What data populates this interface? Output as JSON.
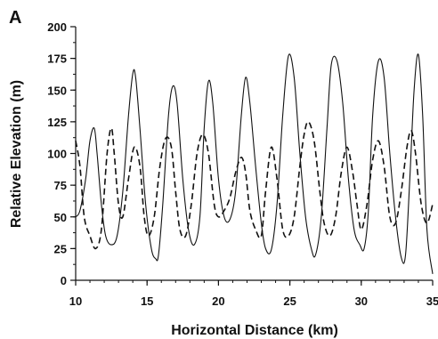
{
  "panel_label": "A",
  "chart_data": {
    "type": "line",
    "title": "",
    "xlabel": "Horizontal Distance (km)",
    "ylabel": "Relative Elevation (m)",
    "xlim": [
      10,
      35
    ],
    "ylim": [
      0,
      200
    ],
    "xticks": [
      10,
      15,
      20,
      25,
      30,
      35
    ],
    "yticks": [
      0,
      25,
      50,
      75,
      100,
      125,
      150,
      175,
      200
    ],
    "grid": false,
    "legend": "none",
    "series": [
      {
        "style": "solid",
        "color": "#111111",
        "x": [
          10.0,
          10.3,
          10.7,
          11.0,
          11.3,
          11.5,
          11.8,
          12.1,
          12.5,
          12.9,
          13.3,
          13.7,
          14.0,
          14.2,
          14.5,
          14.9,
          15.3,
          15.6,
          15.8,
          16.1,
          16.5,
          16.8,
          17.1,
          17.5,
          17.9,
          18.3,
          18.7,
          19.0,
          19.3,
          19.6,
          20.0,
          20.4,
          20.8,
          21.2,
          21.6,
          21.9,
          22.2,
          22.6,
          23.0,
          23.3,
          23.7,
          24.1,
          24.5,
          24.9,
          25.3,
          25.7,
          26.1,
          26.5,
          26.8,
          27.2,
          27.6,
          27.9,
          28.3,
          28.7,
          29.1,
          29.5,
          29.9,
          30.2,
          30.5,
          30.8,
          31.2,
          31.6,
          32.0,
          32.4,
          32.8,
          33.1,
          33.4,
          33.7,
          34.0,
          34.3,
          34.6,
          35.0
        ],
        "y": [
          50,
          55,
          80,
          110,
          120,
          100,
          60,
          35,
          28,
          35,
          70,
          130,
          163,
          160,
          120,
          60,
          25,
          17,
          20,
          60,
          130,
          153,
          140,
          80,
          40,
          28,
          50,
          120,
          157,
          140,
          80,
          50,
          48,
          70,
          130,
          160,
          140,
          90,
          45,
          25,
          24,
          60,
          130,
          177,
          160,
          100,
          50,
          25,
          20,
          50,
          120,
          170,
          173,
          140,
          80,
          40,
          28,
          25,
          55,
          130,
          173,
          160,
          100,
          50,
          18,
          20,
          80,
          150,
          178,
          130,
          40,
          5
        ]
      },
      {
        "style": "dashed",
        "color": "#111111",
        "x": [
          10.0,
          10.3,
          10.6,
          11.0,
          11.4,
          11.8,
          12.2,
          12.5,
          12.7,
          13.0,
          13.3,
          13.7,
          14.1,
          14.5,
          14.8,
          15.1,
          15.5,
          15.9,
          16.3,
          16.7,
          17.0,
          17.3,
          17.7,
          18.1,
          18.5,
          18.9,
          19.3,
          19.7,
          20.0,
          20.4,
          20.8,
          21.2,
          21.6,
          21.9,
          22.2,
          22.6,
          23.0,
          23.3,
          23.7,
          24.1,
          24.5,
          24.9,
          25.3,
          25.7,
          26.0,
          26.3,
          26.7,
          27.1,
          27.4,
          27.8,
          28.2,
          28.6,
          29.0,
          29.4,
          29.7,
          30.0,
          30.4,
          30.8,
          31.2,
          31.6,
          32.0,
          32.4,
          32.8,
          33.2,
          33.5,
          33.8,
          34.2,
          34.6,
          35.0
        ],
        "y": [
          110,
          90,
          50,
          35,
          25,
          40,
          100,
          120,
          100,
          60,
          50,
          80,
          105,
          90,
          50,
          35,
          50,
          90,
          112,
          105,
          70,
          40,
          35,
          60,
          100,
          115,
          100,
          60,
          50,
          55,
          65,
          85,
          97,
          85,
          55,
          40,
          35,
          70,
          105,
          80,
          40,
          35,
          50,
          90,
          115,
          125,
          110,
          70,
          45,
          35,
          50,
          85,
          105,
          85,
          60,
          40,
          60,
          95,
          110,
          90,
          50,
          45,
          70,
          105,
          118,
          100,
          60,
          45,
          60
        ]
      }
    ]
  }
}
